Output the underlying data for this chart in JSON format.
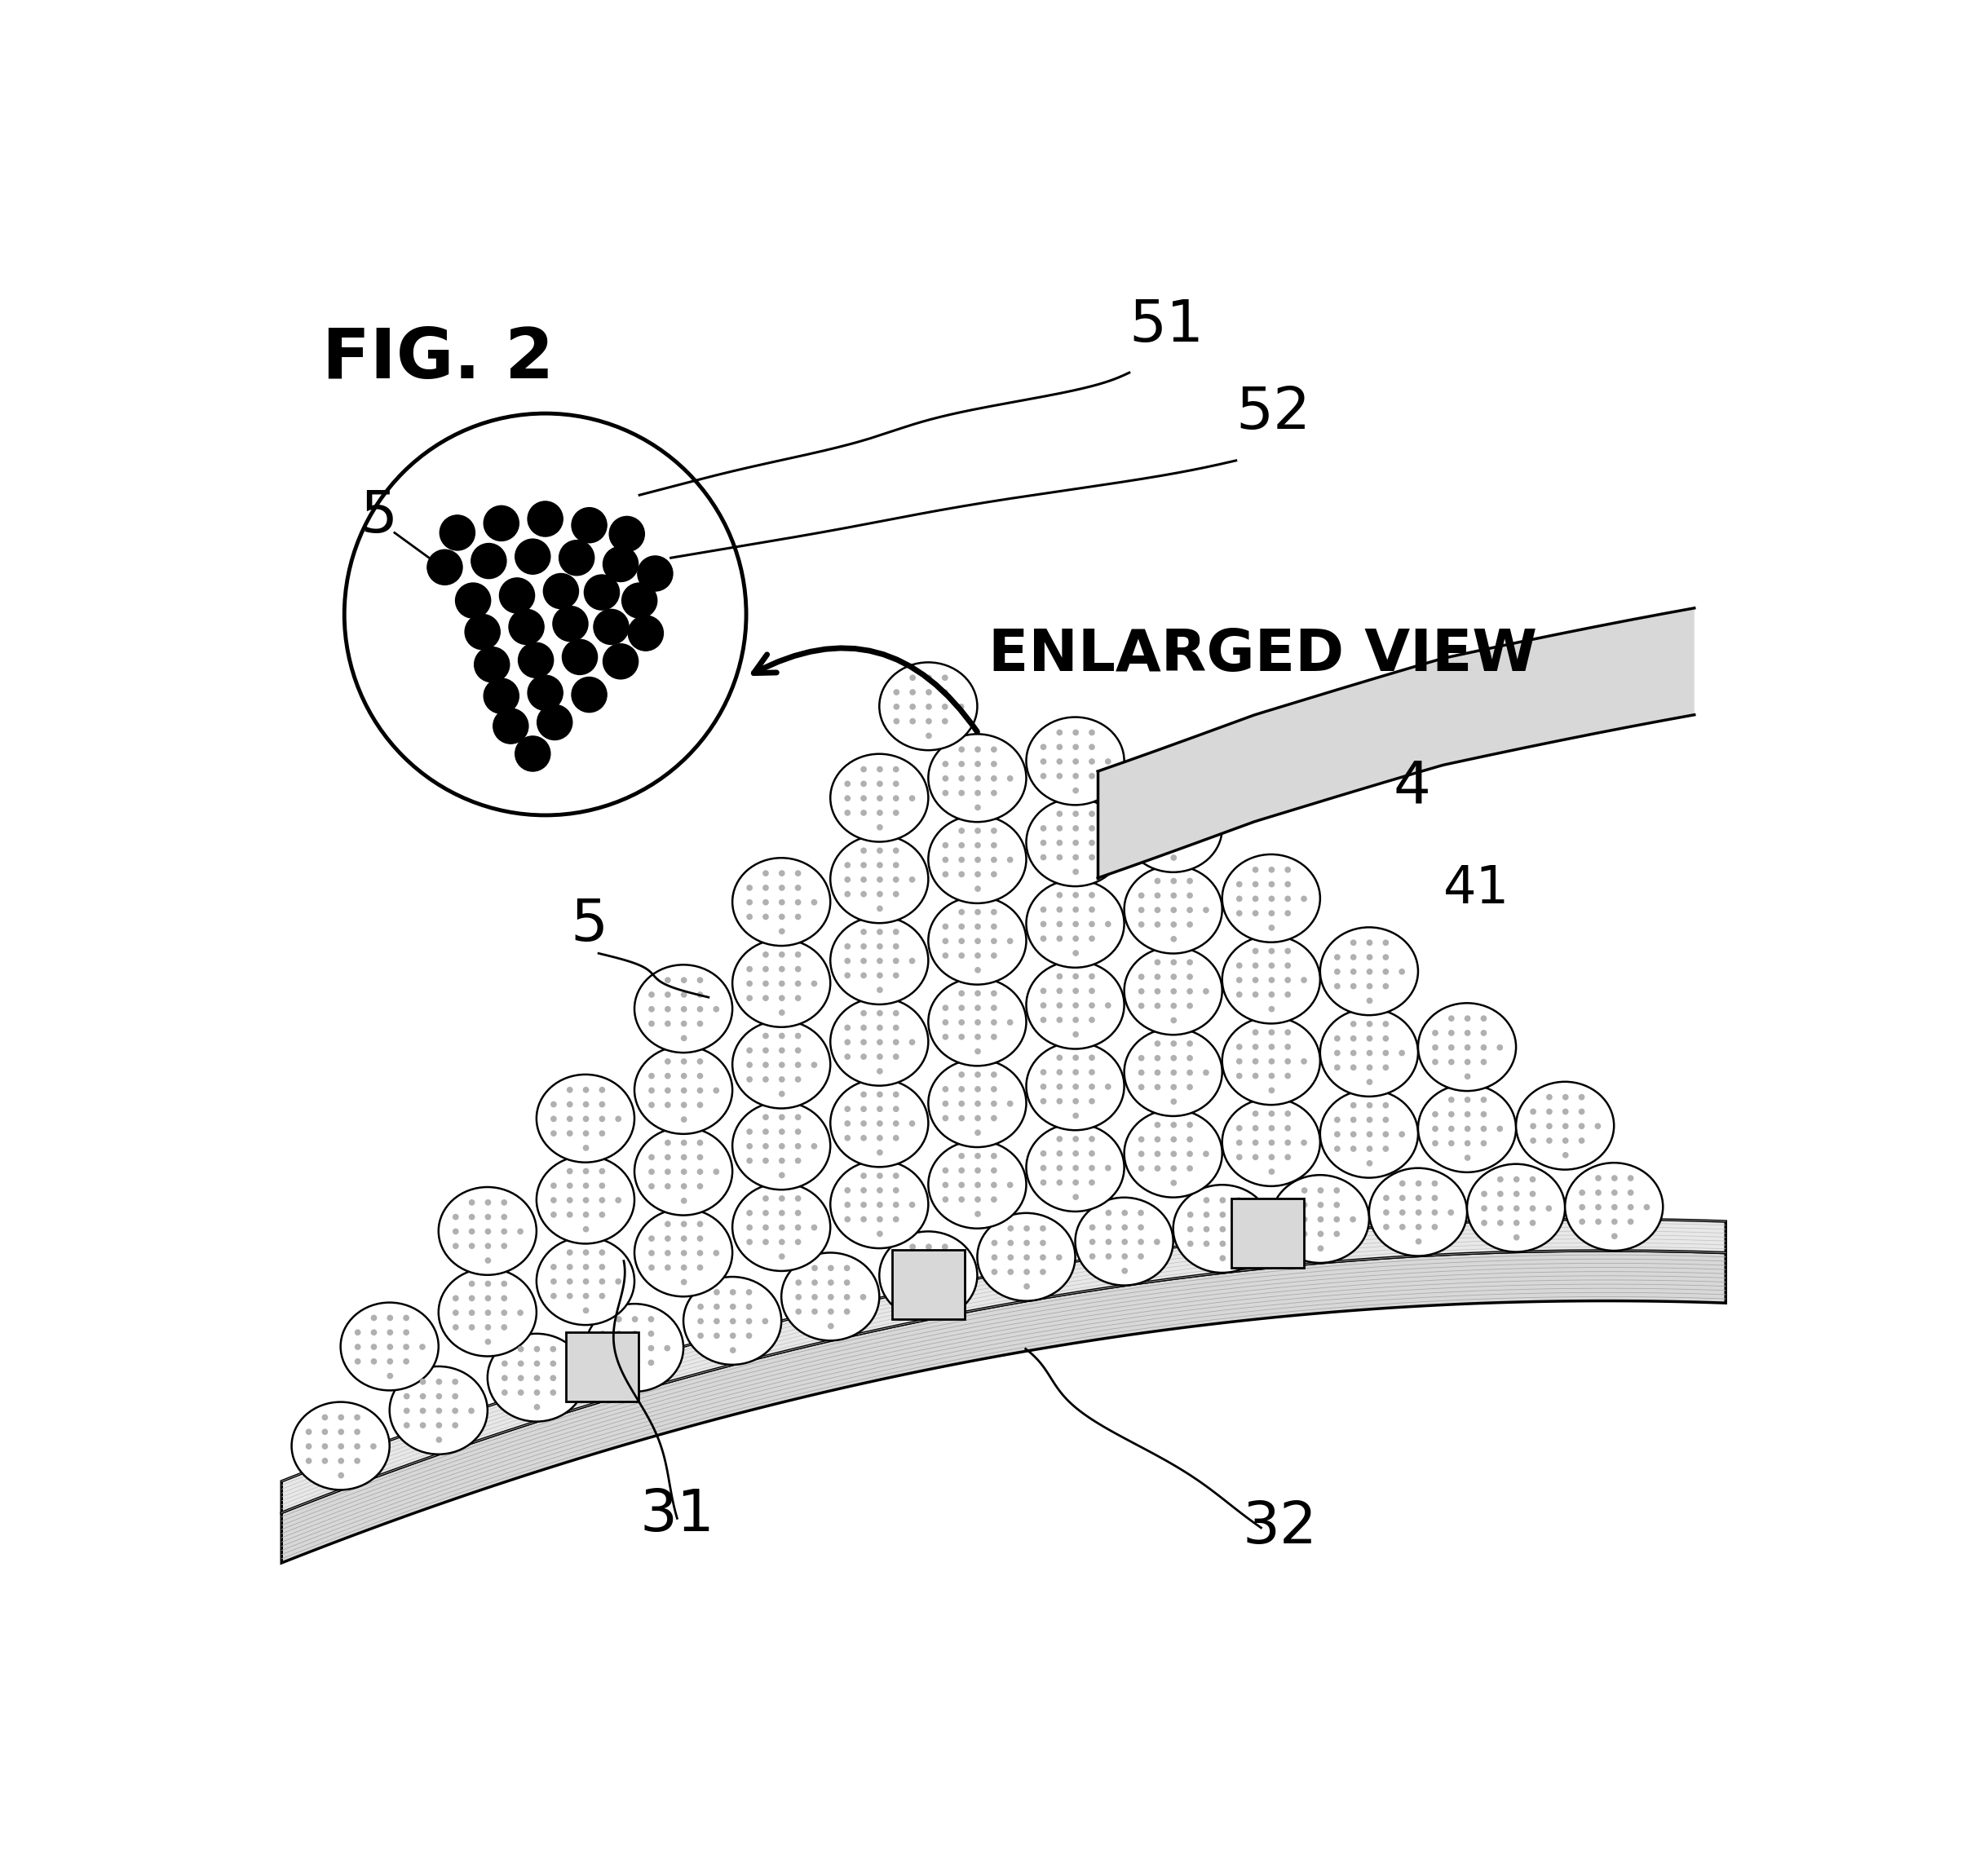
{
  "fig_label": "FIG. 2",
  "enlarged_view_text": "ENLARGED VIEW",
  "labels": {
    "5_enlarge": "5",
    "51": "51",
    "52": "52",
    "5_main": "5",
    "4": "4",
    "41": "41",
    "31": "31",
    "32": "32"
  },
  "bg_color": "#ffffff",
  "lc": "#000000",
  "layer31_fill": "#e8e8e8",
  "layer32_fill": "#d8d8d8",
  "blade4_fill": "#d8d8d8",
  "toner_fill": "#ffffff",
  "toner_dot": "#b0b0b0",
  "rect_fill": "#d0d0d0"
}
